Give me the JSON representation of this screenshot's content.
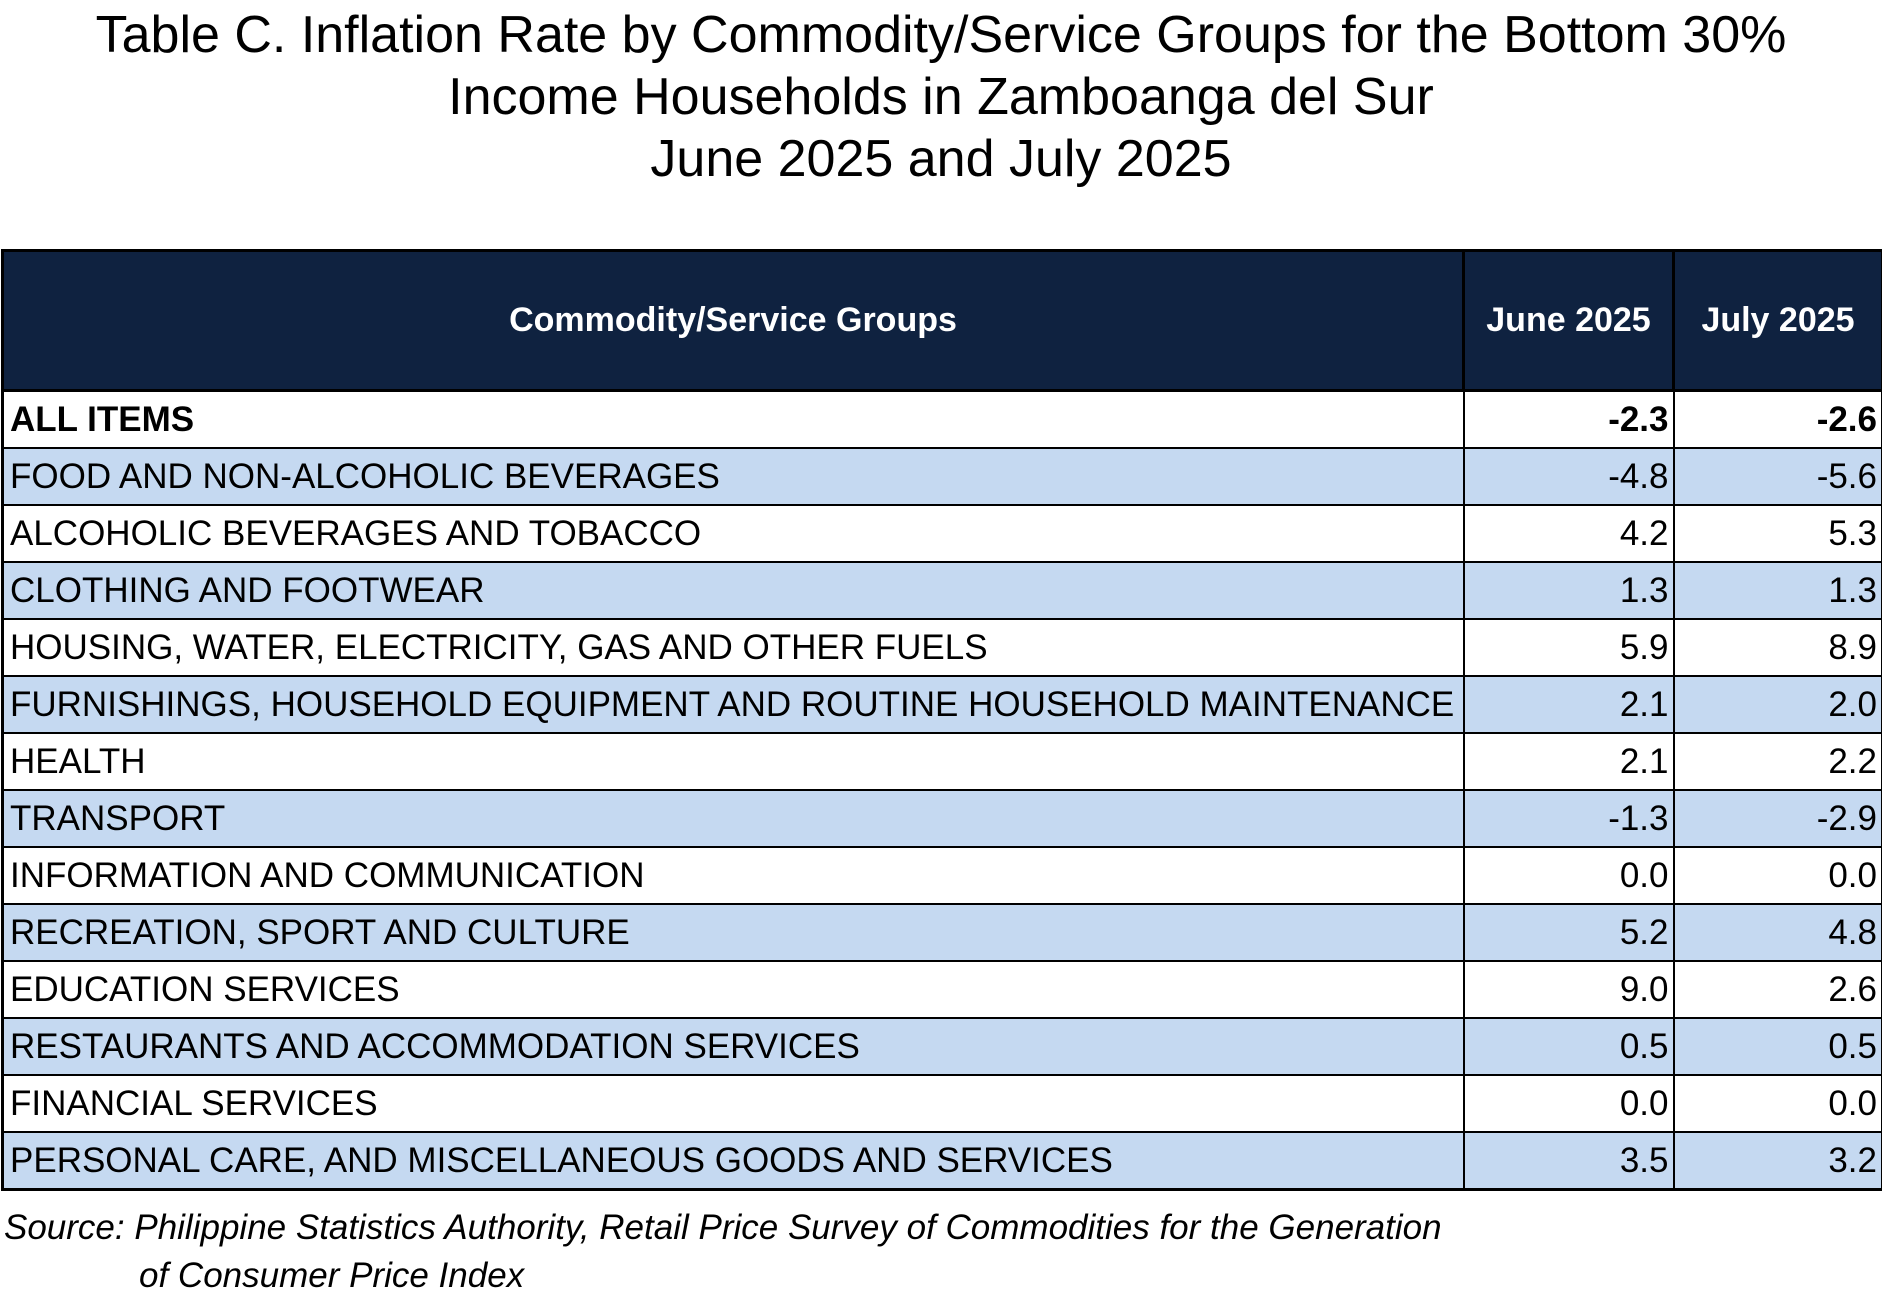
{
  "title": {
    "line1": "Table C. Inflation Rate by Commodity/Service Groups for the Bottom 30%",
    "line2": "Income Households in Zamboanga del Sur",
    "line3": "June 2025 and July 2025"
  },
  "table": {
    "headers": [
      "Commodity/Service Groups",
      "June 2025",
      "July 2025"
    ],
    "rows": [
      {
        "group": "ALL ITEMS",
        "june": "-2.3",
        "july": "-2.6"
      },
      {
        "group": "FOOD AND NON-ALCOHOLIC BEVERAGES",
        "june": "-4.8",
        "july": "-5.6"
      },
      {
        "group": "ALCOHOLIC BEVERAGES AND TOBACCO",
        "june": "4.2",
        "july": "5.3"
      },
      {
        "group": "CLOTHING AND FOOTWEAR",
        "june": "1.3",
        "july": "1.3"
      },
      {
        "group": "HOUSING, WATER, ELECTRICITY, GAS AND OTHER FUELS",
        "june": "5.9",
        "july": "8.9"
      },
      {
        "group": "FURNISHINGS, HOUSEHOLD EQUIPMENT AND ROUTINE HOUSEHOLD MAINTENANCE",
        "june": "2.1",
        "july": "2.0"
      },
      {
        "group": "HEALTH",
        "june": "2.1",
        "july": "2.2"
      },
      {
        "group": "TRANSPORT",
        "june": "-1.3",
        "july": "-2.9"
      },
      {
        "group": "INFORMATION AND COMMUNICATION",
        "june": "0.0",
        "july": "0.0"
      },
      {
        "group": "RECREATION, SPORT AND CULTURE",
        "june": "5.2",
        "july": "4.8"
      },
      {
        "group": "EDUCATION SERVICES",
        "june": "9.0",
        "july": "2.6"
      },
      {
        "group": "RESTAURANTS AND ACCOMMODATION SERVICES",
        "june": "0.5",
        "july": "0.5"
      },
      {
        "group": "FINANCIAL SERVICES",
        "june": "0.0",
        "july": "0.0"
      },
      {
        "group": "PERSONAL CARE, AND MISCELLANEOUS GOODS AND SERVICES",
        "june": "3.5",
        "july": "3.2"
      }
    ]
  },
  "source": {
    "line1": "Source: Philippine Statistics Authority, Retail Price Survey of Commodities for the Generation",
    "line2": "of Consumer Price Index"
  },
  "colors": {
    "header_bg": "#0f2240",
    "header_text": "#ffffff",
    "row_stripe": "#c5d9f1"
  }
}
